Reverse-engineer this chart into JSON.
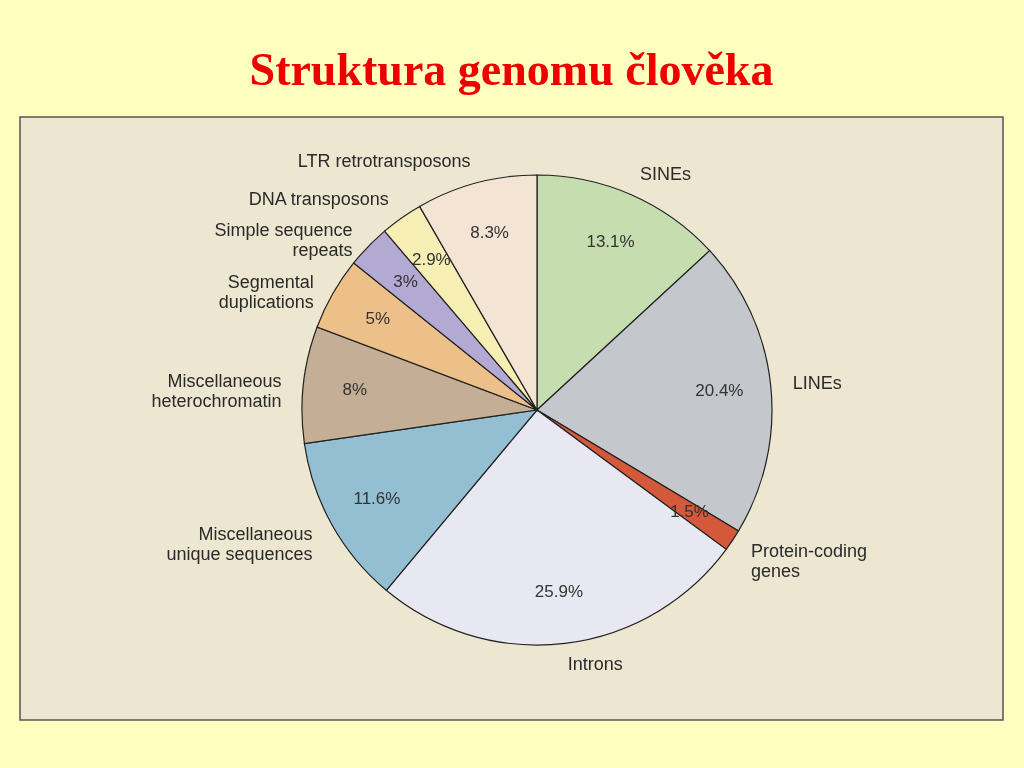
{
  "chart_data": {
    "type": "pie",
    "title": "Struktura genomu člověka",
    "categories": [
      "SINEs",
      "LINEs",
      "Protein-coding\ngenes",
      "Introns",
      "Miscellaneous\nunique sequences",
      "Miscellaneous\nheterochromatin",
      "Segmental\nduplications",
      "Simple sequence\nrepeats",
      "DNA transposons",
      "LTR retrotransposons"
    ],
    "values": [
      13.1,
      20.4,
      1.5,
      25.9,
      11.6,
      8,
      5,
      3,
      2.9,
      8.3
    ],
    "value_labels": [
      "13.1%",
      "20.4%",
      "1.5%",
      "25.9%",
      "11.6%",
      "8%",
      "5%",
      "3%",
      "2.9%",
      "8.3%"
    ],
    "colors": [
      "#c6ddb0",
      "#c4c8cc",
      "#d4583a",
      "#e8e8f2",
      "#94bfd2",
      "#c4ae96",
      "#ecc088",
      "#b2aad2",
      "#f6eeb2",
      "#f4e4d4"
    ]
  }
}
